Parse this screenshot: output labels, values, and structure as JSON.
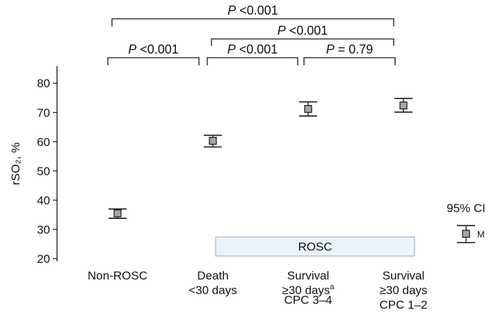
{
  "chart_data": {
    "type": "scatter",
    "ylabel": "rSO₂, %",
    "ylim": [
      20,
      80
    ],
    "yticks": [
      20,
      30,
      40,
      50,
      60,
      70,
      80
    ],
    "grid": false,
    "categories": [
      {
        "lines": [
          "Non-ROSC"
        ]
      },
      {
        "lines": [
          "Death",
          "<30 days"
        ]
      },
      {
        "lines": [
          "Survival",
          "≥30 days",
          "CPC 3–4"
        ],
        "sup": "a"
      },
      {
        "lines": [
          "Survival",
          "≥30 days",
          "CPC 1–2"
        ]
      }
    ],
    "points": [
      {
        "category": "Non-ROSC",
        "mean": 35.5,
        "ci_low": 33.8,
        "ci_high": 37.0
      },
      {
        "category": "Death <30 days",
        "mean": 60.3,
        "ci_low": 58.2,
        "ci_high": 62.2
      },
      {
        "category": "Survival ≥30 days CPC 3–4",
        "mean": 71.2,
        "ci_low": 68.8,
        "ci_high": 73.6
      },
      {
        "category": "Survival ≥30 days CPC 1–2",
        "mean": 72.4,
        "ci_low": 70.1,
        "ci_high": 74.8
      }
    ],
    "comparisons": [
      {
        "from": 0,
        "to": 3,
        "label_italic": "P",
        "label_rest": " <0.001"
      },
      {
        "from": 1,
        "to": 3,
        "label_italic": "P",
        "label_rest": " <0.001"
      },
      {
        "from": 0,
        "to": 1,
        "label_italic": "P",
        "label_rest": " <0.001"
      },
      {
        "from": 1,
        "to": 2,
        "label_italic": "P",
        "label_rest": " <0.001"
      },
      {
        "from": 2,
        "to": 3,
        "label_italic": "P",
        "label_rest": " = 0.79"
      }
    ],
    "group_box": {
      "label": "ROSC",
      "from": 1,
      "to": 3
    },
    "legend": {
      "title": "95% CI",
      "marker_label": "M",
      "mean": 28.5,
      "ci_low": 25.5,
      "ci_high": 31.3
    },
    "colors": {
      "marker_fill": "#a6a6a6",
      "group_box_fill": "#e8f4fc",
      "group_box_stroke": "#9aa3aa",
      "ink": "#111111"
    }
  }
}
